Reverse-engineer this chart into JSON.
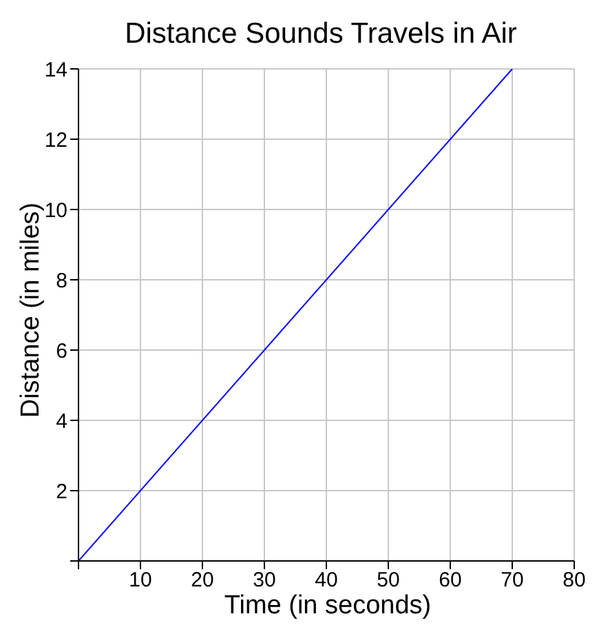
{
  "chart_data": {
    "type": "line",
    "title": "Distance Sounds Travels in Air",
    "xlabel": "Time (in seconds)",
    "ylabel": "Distance (in miles)",
    "x": [
      0,
      70
    ],
    "series": [
      {
        "color": "#0000ff",
        "values": [
          0,
          14
        ]
      }
    ],
    "xlim": [
      0,
      80
    ],
    "ylim": [
      0,
      14
    ],
    "xticks": [
      {
        "value": 0,
        "label": null
      },
      10,
      20,
      30,
      40,
      50,
      60,
      70,
      80
    ],
    "yticks": [
      {
        "value": 0,
        "label": null
      },
      2,
      4,
      6,
      8,
      10,
      12,
      14
    ],
    "grid": true,
    "legend": false,
    "marker": "none",
    "line_style": "solid"
  }
}
